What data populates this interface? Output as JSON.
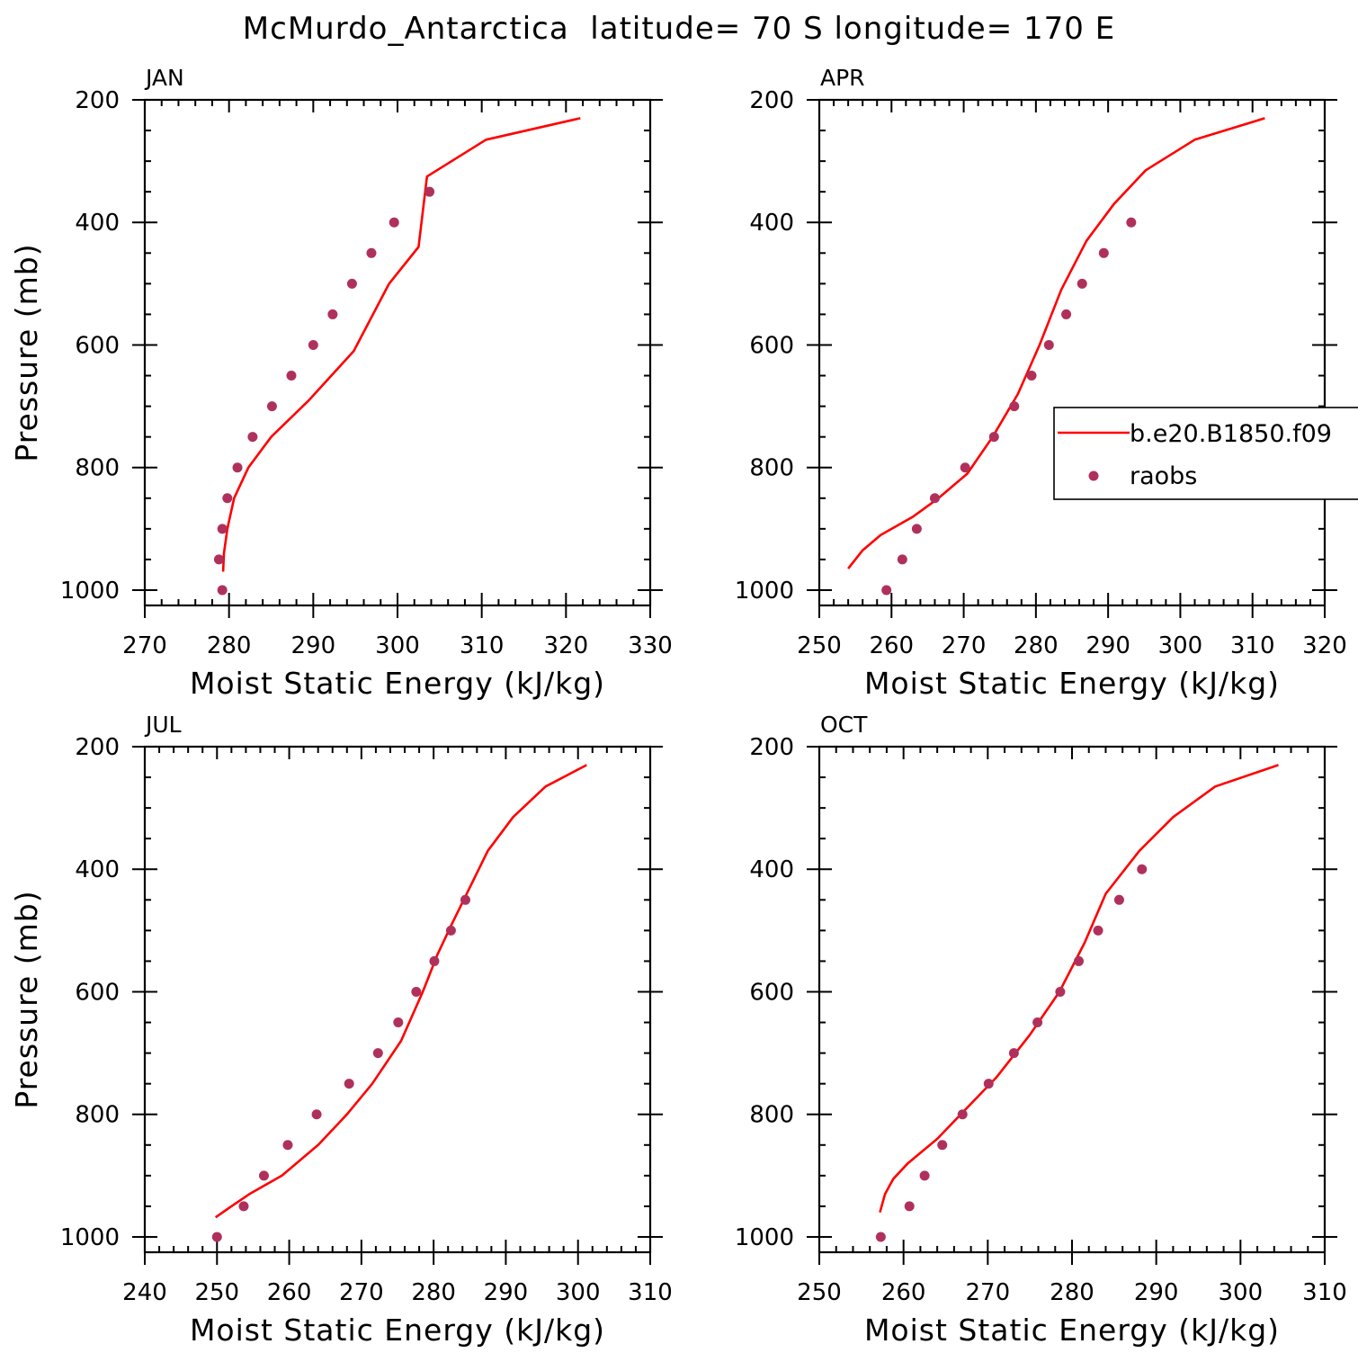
{
  "title": "McMurdo_Antarctica  latitude= 70 S longitude= 170 E",
  "legend": {
    "model_label": "b.e20.B1850.f09",
    "obs_label": "raobs",
    "panel": 1
  },
  "colors": {
    "model": "#ff0000",
    "obs": "#b0305c",
    "axis": "#000000"
  },
  "chart_data": [
    {
      "type": "line",
      "panel_title": "JAN",
      "xlabel": "Moist Static Energy (kJ/kg)",
      "ylabel": "Pressure (mb)",
      "xlim": [
        270,
        330
      ],
      "ylim": [
        1025,
        200
      ],
      "xticks": [
        270,
        280,
        290,
        300,
        310,
        320,
        330
      ],
      "yticks": [
        200,
        400,
        600,
        800,
        1000
      ],
      "series": [
        {
          "name": "b.e20.B1850.f09",
          "kind": "line",
          "x": [
            279.3,
            279.4,
            279.8,
            280.6,
            282.3,
            285.0,
            289.5,
            294.8,
            299.0,
            302.5,
            303.5,
            310.5,
            321.7
          ],
          "y": [
            970,
            940,
            900,
            850,
            800,
            750,
            690,
            610,
            500,
            440,
            325,
            265,
            230
          ]
        },
        {
          "name": "raobs",
          "kind": "scatter",
          "x": [
            279.2,
            278.8,
            279.2,
            279.8,
            281.0,
            282.8,
            285.1,
            287.4,
            290.0,
            292.3,
            294.6,
            296.9,
            299.6,
            303.8
          ],
          "y": [
            1000,
            950,
            900,
            850,
            800,
            750,
            700,
            650,
            600,
            550,
            500,
            450,
            400,
            350
          ]
        }
      ]
    },
    {
      "type": "line",
      "panel_title": "APR",
      "xlabel": "Moist Static Energy (kJ/kg)",
      "ylabel": "",
      "xlim": [
        250,
        320
      ],
      "ylim": [
        1025,
        200
      ],
      "xticks": [
        250,
        260,
        270,
        280,
        290,
        300,
        310,
        320
      ],
      "yticks": [
        200,
        400,
        600,
        800,
        1000
      ],
      "series": [
        {
          "name": "b.e20.B1850.f09",
          "kind": "line",
          "x": [
            254.0,
            256.0,
            258.5,
            263.0,
            266.5,
            270.5,
            274.0,
            277.5,
            280.5,
            283.5,
            287.0,
            290.8,
            295.2,
            302.0,
            311.7
          ],
          "y": [
            965,
            935,
            910,
            880,
            850,
            810,
            750,
            680,
            600,
            510,
            430,
            370,
            315,
            265,
            230
          ]
        },
        {
          "name": "raobs",
          "kind": "scatter",
          "x": [
            259.3,
            261.5,
            263.5,
            266.0,
            270.2,
            274.2,
            277.0,
            279.4,
            281.8,
            284.2,
            286.4,
            289.4,
            293.2
          ],
          "y": [
            1000,
            950,
            900,
            850,
            800,
            750,
            700,
            650,
            600,
            550,
            500,
            450,
            400
          ]
        }
      ]
    },
    {
      "type": "line",
      "panel_title": "JUL",
      "xlabel": "Moist Static Energy (kJ/kg)",
      "ylabel": "Pressure (mb)",
      "xlim": [
        240,
        310
      ],
      "ylim": [
        1025,
        200
      ],
      "xticks": [
        240,
        250,
        260,
        270,
        280,
        290,
        300,
        310
      ],
      "yticks": [
        200,
        400,
        600,
        800,
        1000
      ],
      "series": [
        {
          "name": "b.e20.B1850.f09",
          "kind": "line",
          "x": [
            249.8,
            252.0,
            254.5,
            259.0,
            264.0,
            268.0,
            271.5,
            275.5,
            278.5,
            280.5,
            282.5,
            285.0,
            287.5,
            291.0,
            295.5,
            301.2
          ],
          "y": [
            968,
            950,
            930,
            900,
            850,
            800,
            750,
            680,
            600,
            540,
            490,
            430,
            370,
            315,
            265,
            230
          ]
        },
        {
          "name": "raobs",
          "kind": "scatter",
          "x": [
            250.0,
            253.7,
            256.5,
            259.8,
            263.8,
            268.3,
            272.3,
            275.1,
            277.6,
            280.1,
            282.4,
            284.4
          ],
          "y": [
            1000,
            950,
            900,
            850,
            800,
            750,
            700,
            650,
            600,
            550,
            500,
            450
          ]
        }
      ]
    },
    {
      "type": "line",
      "panel_title": "OCT",
      "xlabel": "Moist Static Energy (kJ/kg)",
      "ylabel": "",
      "xlim": [
        250,
        310
      ],
      "ylim": [
        1025,
        200
      ],
      "xticks": [
        250,
        260,
        270,
        280,
        290,
        300,
        310
      ],
      "yticks": [
        200,
        400,
        600,
        800,
        1000
      ],
      "series": [
        {
          "name": "b.e20.B1850.f09",
          "kind": "line",
          "x": [
            257.2,
            257.8,
            258.8,
            260.5,
            264.0,
            267.5,
            271.0,
            275.0,
            278.5,
            281.5,
            284.0,
            288.0,
            292.0,
            297.0,
            304.5
          ],
          "y": [
            960,
            930,
            905,
            880,
            840,
            790,
            740,
            670,
            600,
            520,
            440,
            370,
            315,
            265,
            230
          ]
        },
        {
          "name": "raobs",
          "kind": "scatter",
          "x": [
            257.3,
            260.7,
            262.5,
            264.6,
            267.0,
            270.1,
            273.1,
            275.9,
            278.6,
            280.8,
            283.1,
            285.6,
            288.3
          ],
          "y": [
            1000,
            950,
            900,
            850,
            800,
            750,
            700,
            650,
            600,
            550,
            500,
            450,
            400
          ]
        }
      ]
    }
  ]
}
